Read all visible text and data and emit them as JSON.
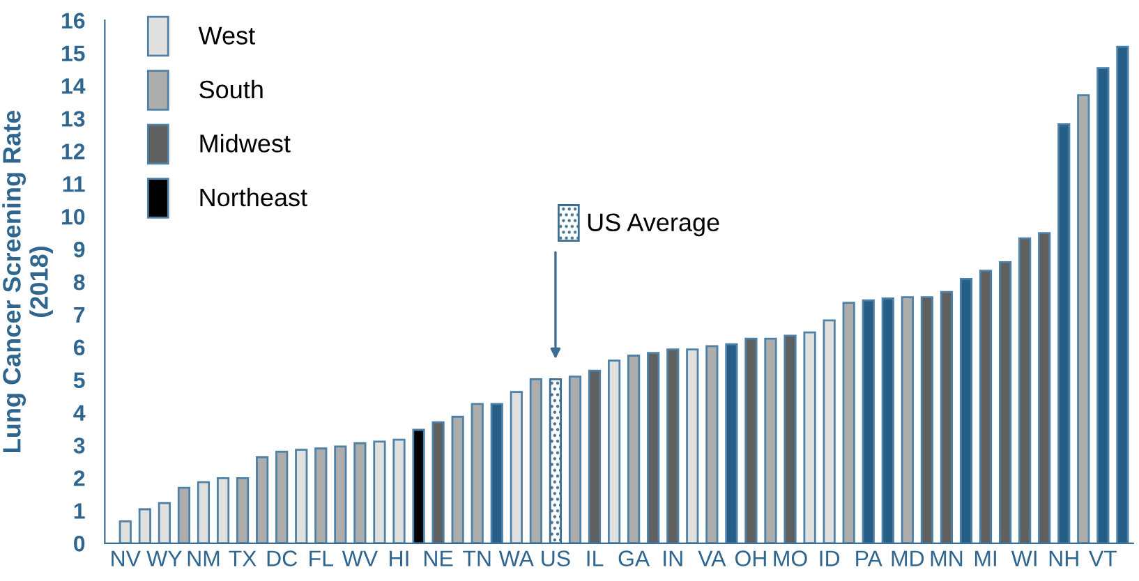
{
  "chart_data": {
    "type": "bar",
    "stacked": true,
    "ylabel": "Lung Cancer Screening Rate\n(2018)",
    "categories": [
      "NV",
      null,
      "WY",
      null,
      "NM",
      null,
      "TX",
      null,
      "DC",
      null,
      "FL",
      null,
      "WV",
      null,
      "HI",
      null,
      "NE",
      null,
      "TN",
      null,
      "WA",
      null,
      "US",
      null,
      "IL",
      null,
      "GA",
      null,
      "IN",
      null,
      "VA",
      null,
      "OH",
      null,
      "MO",
      null,
      "ID",
      null,
      "PA",
      null,
      "MD",
      null,
      "MN",
      null,
      "MI",
      null,
      "WI",
      null,
      "NH",
      null,
      "VT",
      null
    ],
    "ylim": [
      0,
      16
    ],
    "yticks": [
      0,
      1,
      2,
      3,
      4,
      5,
      6,
      7,
      8,
      9,
      10,
      11,
      12,
      13,
      14,
      15,
      16
    ],
    "grid": false,
    "legend": "top left",
    "series": [
      {
        "name": "West",
        "color": "#e0e0e0",
        "values": [
          0.67,
          1.04,
          1.23,
          null,
          1.87,
          1.99,
          null,
          null,
          null,
          2.86,
          null,
          null,
          null,
          3.11,
          3.17,
          null,
          null,
          null,
          null,
          null,
          4.63,
          null,
          null,
          null,
          null,
          5.59,
          null,
          null,
          null,
          5.93,
          null,
          null,
          null,
          null,
          null,
          6.45,
          6.82,
          null,
          null,
          null,
          null,
          null,
          null,
          null,
          null,
          null,
          null,
          null,
          null,
          null,
          null,
          null
        ]
      },
      {
        "name": "South",
        "color": "#adadad",
        "values": [
          null,
          null,
          null,
          1.7,
          null,
          null,
          1.99,
          2.63,
          2.8,
          null,
          2.9,
          2.96,
          3.06,
          null,
          null,
          null,
          null,
          3.87,
          4.26,
          null,
          null,
          5.02,
          null,
          5.1,
          null,
          null,
          5.74,
          null,
          null,
          null,
          6.03,
          null,
          null,
          6.26,
          null,
          null,
          null,
          7.36,
          null,
          null,
          7.53,
          null,
          null,
          null,
          null,
          null,
          null,
          null,
          null,
          13.71,
          null,
          null
        ]
      },
      {
        "name": "Midwest",
        "color": "#606060",
        "values": [
          null,
          null,
          null,
          null,
          null,
          null,
          null,
          null,
          null,
          null,
          null,
          null,
          null,
          null,
          null,
          null,
          3.7,
          null,
          null,
          null,
          null,
          null,
          null,
          null,
          5.28,
          null,
          null,
          5.82,
          5.93,
          null,
          null,
          null,
          6.26,
          null,
          6.35,
          null,
          null,
          null,
          null,
          null,
          null,
          7.53,
          7.69,
          null,
          8.34,
          8.6,
          9.33,
          9.49,
          null,
          null,
          null,
          null
        ]
      },
      {
        "name": "Northeast",
        "color": "#000000",
        "colors": [
          null,
          null,
          null,
          null,
          null,
          null,
          null,
          null,
          null,
          null,
          null,
          null,
          null,
          null,
          null,
          "#000000",
          null,
          null,
          null,
          "#255e86",
          null,
          null,
          null,
          null,
          null,
          null,
          null,
          null,
          null,
          null,
          null,
          "#255e86",
          null,
          null,
          null,
          null,
          null,
          null,
          "#255e86",
          "#255e86",
          null,
          null,
          null,
          "#255e86",
          null,
          null,
          null,
          null,
          "#255e86",
          null,
          "#255e86",
          "#255e86"
        ],
        "values": [
          null,
          null,
          null,
          null,
          null,
          null,
          null,
          null,
          null,
          null,
          null,
          null,
          null,
          null,
          null,
          3.47,
          null,
          null,
          null,
          4.26,
          null,
          null,
          null,
          null,
          null,
          null,
          null,
          null,
          null,
          null,
          null,
          6.09,
          null,
          null,
          null,
          null,
          null,
          null,
          7.43,
          7.49,
          null,
          null,
          null,
          8.09,
          null,
          null,
          null,
          null,
          12.82,
          null,
          14.54,
          15.19
        ]
      },
      {
        "name": "US Average",
        "color": "#3c6e91",
        "values": [
          null,
          null,
          null,
          null,
          null,
          null,
          null,
          null,
          null,
          null,
          null,
          null,
          null,
          null,
          null,
          null,
          null,
          null,
          null,
          null,
          null,
          null,
          5.02,
          null,
          null,
          null,
          null,
          null,
          null,
          null,
          null,
          null,
          null,
          null,
          null,
          null,
          null,
          null,
          null,
          null,
          null,
          null,
          null,
          null,
          null,
          null,
          null,
          null,
          null,
          null,
          null,
          null
        ]
      }
    ]
  }
}
